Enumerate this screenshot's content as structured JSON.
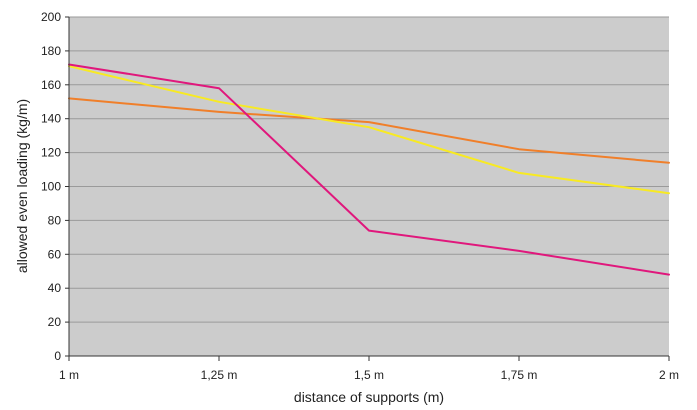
{
  "chart_data": {
    "type": "line",
    "title": "",
    "xlabel": "distance of supports (m)",
    "ylabel": "allowed even loading (kg/m)",
    "categories": [
      "1 m",
      "1,25 m",
      "1,5 m",
      "1,75 m",
      "2 m"
    ],
    "ylim": [
      0,
      200
    ],
    "yticks": [
      0,
      20,
      40,
      60,
      80,
      100,
      120,
      140,
      160,
      180,
      200
    ],
    "grid": true,
    "plot_background": "#cccccc",
    "series": [
      {
        "color": "#f07f2a",
        "values": [
          152,
          144,
          138,
          122,
          114
        ]
      },
      {
        "color": "#f8ea22",
        "values": [
          171,
          150,
          135,
          108,
          96
        ]
      },
      {
        "color": "#e0177c",
        "values": [
          172,
          158,
          74,
          62,
          48
        ]
      }
    ]
  }
}
